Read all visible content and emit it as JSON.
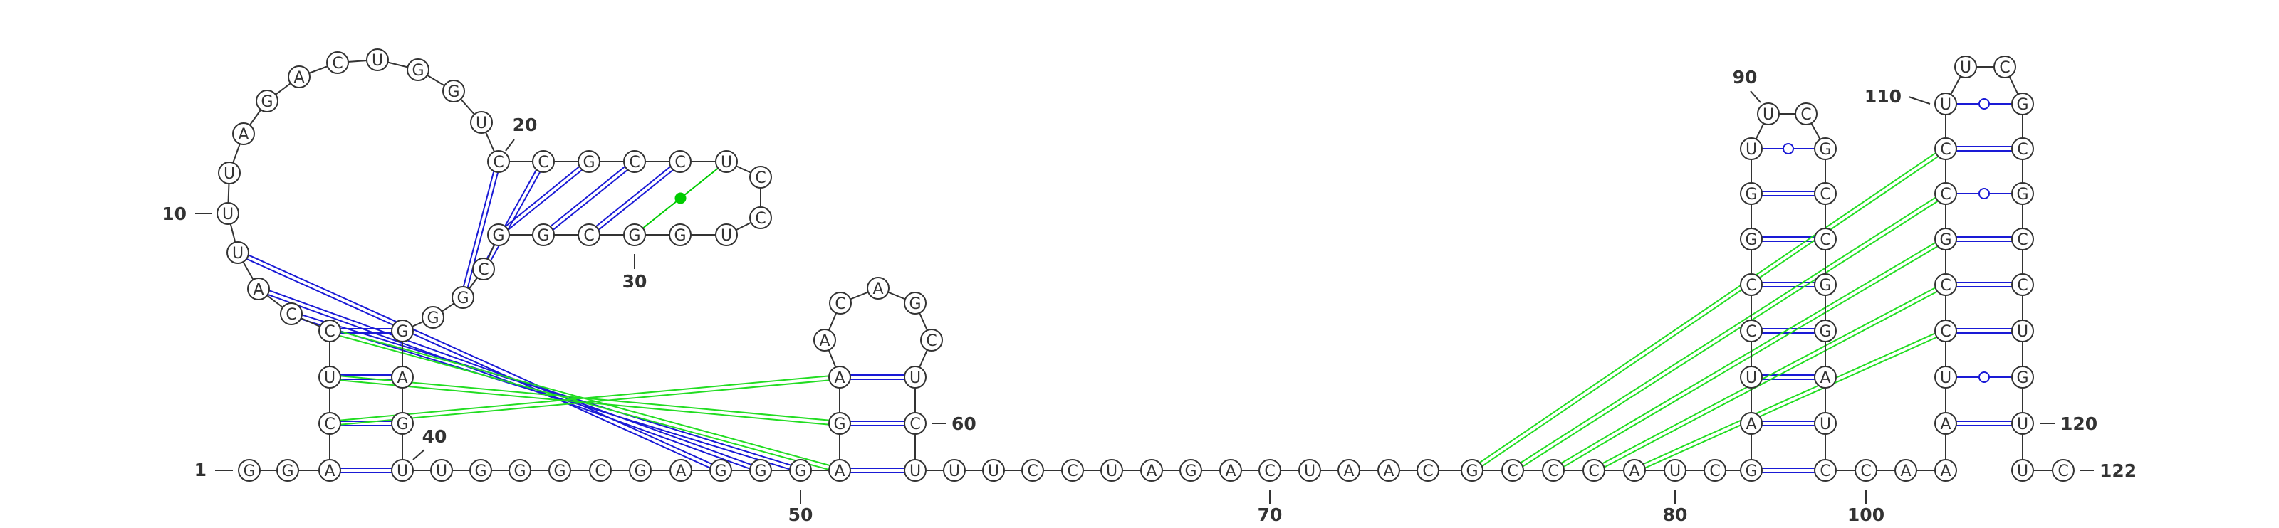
{
  "diagram": {
    "type": "rna-secondary-structure",
    "sequence_length": 122,
    "colors": {
      "backbone": "#333333",
      "canonical_pair": "#1a1ad6",
      "wobble_pair": "#1a1ad6",
      "noncanonical_pair": "#00cc00",
      "pseudoknot_pair": "#22dd22"
    },
    "nucleotides": [
      {
        "n": 1,
        "b": "G"
      },
      {
        "n": 2,
        "b": "G"
      },
      {
        "n": 3,
        "b": "A"
      },
      {
        "n": 4,
        "b": "C"
      },
      {
        "n": 5,
        "b": "U"
      },
      {
        "n": 6,
        "b": "C"
      },
      {
        "n": 7,
        "b": "C"
      },
      {
        "n": 8,
        "b": "A"
      },
      {
        "n": 9,
        "b": "U"
      },
      {
        "n": 10,
        "b": "U"
      },
      {
        "n": 11,
        "b": "U"
      },
      {
        "n": 12,
        "b": "A"
      },
      {
        "n": 13,
        "b": "G"
      },
      {
        "n": 14,
        "b": "A"
      },
      {
        "n": 15,
        "b": "C"
      },
      {
        "n": 16,
        "b": "U"
      },
      {
        "n": 17,
        "b": "G"
      },
      {
        "n": 18,
        "b": "G"
      },
      {
        "n": 19,
        "b": "U"
      },
      {
        "n": 20,
        "b": "C"
      },
      {
        "n": 21,
        "b": "C"
      },
      {
        "n": 22,
        "b": "G"
      },
      {
        "n": 23,
        "b": "C"
      },
      {
        "n": 24,
        "b": "C"
      },
      {
        "n": 25,
        "b": "U"
      },
      {
        "n": 26,
        "b": "C"
      },
      {
        "n": 27,
        "b": "C"
      },
      {
        "n": 28,
        "b": "U"
      },
      {
        "n": 29,
        "b": "G"
      },
      {
        "n": 30,
        "b": "G"
      },
      {
        "n": 31,
        "b": "C"
      },
      {
        "n": 32,
        "b": "G"
      },
      {
        "n": 33,
        "b": "G"
      },
      {
        "n": 34,
        "b": "C"
      },
      {
        "n": 35,
        "b": "G"
      },
      {
        "n": 36,
        "b": "G"
      },
      {
        "n": 37,
        "b": "G"
      },
      {
        "n": 38,
        "b": "A"
      },
      {
        "n": 39,
        "b": "G"
      },
      {
        "n": 40,
        "b": "U"
      },
      {
        "n": 41,
        "b": "U"
      },
      {
        "n": 42,
        "b": "G"
      },
      {
        "n": 43,
        "b": "G"
      },
      {
        "n": 44,
        "b": "G"
      },
      {
        "n": 45,
        "b": "C"
      },
      {
        "n": 46,
        "b": "G"
      },
      {
        "n": 47,
        "b": "A"
      },
      {
        "n": 48,
        "b": "G"
      },
      {
        "n": 49,
        "b": "G"
      },
      {
        "n": 50,
        "b": "G"
      },
      {
        "n": 51,
        "b": "A"
      },
      {
        "n": 52,
        "b": "G"
      },
      {
        "n": 53,
        "b": "A"
      },
      {
        "n": 54,
        "b": "A"
      },
      {
        "n": 55,
        "b": "C"
      },
      {
        "n": 56,
        "b": "A"
      },
      {
        "n": 57,
        "b": "G"
      },
      {
        "n": 58,
        "b": "C"
      },
      {
        "n": 59,
        "b": "U"
      },
      {
        "n": 60,
        "b": "C"
      },
      {
        "n": 61,
        "b": "U"
      },
      {
        "n": 62,
        "b": "U"
      },
      {
        "n": 63,
        "b": "U"
      },
      {
        "n": 64,
        "b": "C"
      },
      {
        "n": 65,
        "b": "C"
      },
      {
        "n": 66,
        "b": "U"
      },
      {
        "n": 67,
        "b": "A"
      },
      {
        "n": 68,
        "b": "G"
      },
      {
        "n": 69,
        "b": "A"
      },
      {
        "n": 70,
        "b": "C"
      },
      {
        "n": 71,
        "b": "U"
      },
      {
        "n": 72,
        "b": "A"
      },
      {
        "n": 73,
        "b": "A"
      },
      {
        "n": 74,
        "b": "C"
      },
      {
        "n": 75,
        "b": "G"
      },
      {
        "n": 76,
        "b": "C"
      },
      {
        "n": 77,
        "b": "C"
      },
      {
        "n": 78,
        "b": "C"
      },
      {
        "n": 79,
        "b": "A"
      },
      {
        "n": 80,
        "b": "U"
      },
      {
        "n": 81,
        "b": "C"
      },
      {
        "n": 82,
        "b": "G"
      },
      {
        "n": 83,
        "b": "A"
      },
      {
        "n": 84,
        "b": "U"
      },
      {
        "n": 85,
        "b": "C"
      },
      {
        "n": 86,
        "b": "C"
      },
      {
        "n": 87,
        "b": "G"
      },
      {
        "n": 88,
        "b": "G"
      },
      {
        "n": 89,
        "b": "U"
      },
      {
        "n": 90,
        "b": "U"
      },
      {
        "n": 91,
        "b": "C"
      },
      {
        "n": 92,
        "b": "G"
      },
      {
        "n": 93,
        "b": "C"
      },
      {
        "n": 94,
        "b": "C"
      },
      {
        "n": 95,
        "b": "G"
      },
      {
        "n": 96,
        "b": "G"
      },
      {
        "n": 97,
        "b": "A"
      },
      {
        "n": 98,
        "b": "U"
      },
      {
        "n": 99,
        "b": "C"
      },
      {
        "n": 100,
        "b": "C"
      },
      {
        "n": 101,
        "b": "A"
      },
      {
        "n": 102,
        "b": "A"
      },
      {
        "n": 103,
        "b": "A"
      },
      {
        "n": 104,
        "b": "U"
      },
      {
        "n": 105,
        "b": "C"
      },
      {
        "n": 106,
        "b": "C"
      },
      {
        "n": 107,
        "b": "G"
      },
      {
        "n": 108,
        "b": "C"
      },
      {
        "n": 109,
        "b": "C"
      },
      {
        "n": 110,
        "b": "U"
      },
      {
        "n": 111,
        "b": "U"
      },
      {
        "n": 112,
        "b": "C"
      },
      {
        "n": 113,
        "b": "G"
      },
      {
        "n": 114,
        "b": "C"
      },
      {
        "n": 115,
        "b": "G"
      },
      {
        "n": 116,
        "b": "C"
      },
      {
        "n": 117,
        "b": "C"
      },
      {
        "n": 118,
        "b": "U"
      },
      {
        "n": 119,
        "b": "G"
      },
      {
        "n": 120,
        "b": "U"
      },
      {
        "n": 121,
        "b": "U"
      },
      {
        "n": 122,
        "b": "C"
      }
    ],
    "numbering": [
      {
        "n": 1,
        "label": "1"
      },
      {
        "n": 10,
        "label": "10"
      },
      {
        "n": 20,
        "label": "20"
      },
      {
        "n": 30,
        "label": "30"
      },
      {
        "n": 40,
        "label": "40"
      },
      {
        "n": 50,
        "label": "50"
      },
      {
        "n": 60,
        "label": "60"
      },
      {
        "n": 70,
        "label": "70"
      },
      {
        "n": 80,
        "label": "80"
      },
      {
        "n": 90,
        "label": "90"
      },
      {
        "n": 100,
        "label": "100"
      },
      {
        "n": 110,
        "label": "110"
      },
      {
        "n": 120,
        "label": "120"
      },
      {
        "n": 122,
        "label": "122"
      }
    ],
    "base_pairs": [
      {
        "i": 3,
        "j": 40,
        "type": "canonical"
      },
      {
        "i": 4,
        "j": 39,
        "type": "canonical"
      },
      {
        "i": 5,
        "j": 38,
        "type": "canonical"
      },
      {
        "i": 6,
        "j": 37,
        "type": "canonical"
      },
      {
        "i": 20,
        "j": 35,
        "type": "canonical"
      },
      {
        "i": 21,
        "j": 34,
        "type": "canonical"
      },
      {
        "i": 22,
        "j": 33,
        "type": "canonical"
      },
      {
        "i": 23,
        "j": 32,
        "type": "canonical"
      },
      {
        "i": 24,
        "j": 31,
        "type": "canonical"
      },
      {
        "i": 25,
        "j": 30,
        "type": "noncanonical"
      },
      {
        "i": 51,
        "j": 61,
        "type": "canonical"
      },
      {
        "i": 52,
        "j": 60,
        "type": "canonical"
      },
      {
        "i": 53,
        "j": 59,
        "type": "canonical"
      },
      {
        "i": 82,
        "j": 99,
        "type": "canonical"
      },
      {
        "i": 83,
        "j": 98,
        "type": "canonical"
      },
      {
        "i": 84,
        "j": 97,
        "type": "canonical"
      },
      {
        "i": 85,
        "j": 96,
        "type": "canonical"
      },
      {
        "i": 86,
        "j": 95,
        "type": "canonical"
      },
      {
        "i": 87,
        "j": 94,
        "type": "canonical"
      },
      {
        "i": 88,
        "j": 93,
        "type": "canonical"
      },
      {
        "i": 89,
        "j": 92,
        "type": "wobble"
      },
      {
        "i": 103,
        "j": 120,
        "type": "canonical"
      },
      {
        "i": 104,
        "j": 119,
        "type": "wobble"
      },
      {
        "i": 105,
        "j": 118,
        "type": "canonical"
      },
      {
        "i": 106,
        "j": 117,
        "type": "canonical"
      },
      {
        "i": 107,
        "j": 116,
        "type": "canonical"
      },
      {
        "i": 108,
        "j": 115,
        "type": "wobble"
      },
      {
        "i": 109,
        "j": 114,
        "type": "canonical"
      },
      {
        "i": 110,
        "j": 113,
        "type": "wobble"
      },
      {
        "i": 7,
        "j": 50,
        "type": "canonical"
      },
      {
        "i": 8,
        "j": 49,
        "type": "canonical"
      },
      {
        "i": 9,
        "j": 48,
        "type": "canonical"
      },
      {
        "i": 4,
        "j": 53,
        "type": "pseudoknot"
      },
      {
        "i": 5,
        "j": 52,
        "type": "pseudoknot"
      },
      {
        "i": 6,
        "j": 51,
        "type": "pseudoknot"
      },
      {
        "i": 75,
        "j": 109,
        "type": "pseudoknot"
      },
      {
        "i": 76,
        "j": 108,
        "type": "pseudoknot"
      },
      {
        "i": 77,
        "j": 107,
        "type": "pseudoknot"
      },
      {
        "i": 78,
        "j": 106,
        "type": "pseudoknot"
      },
      {
        "i": 79,
        "j": 105,
        "type": "pseudoknot"
      }
    ]
  }
}
